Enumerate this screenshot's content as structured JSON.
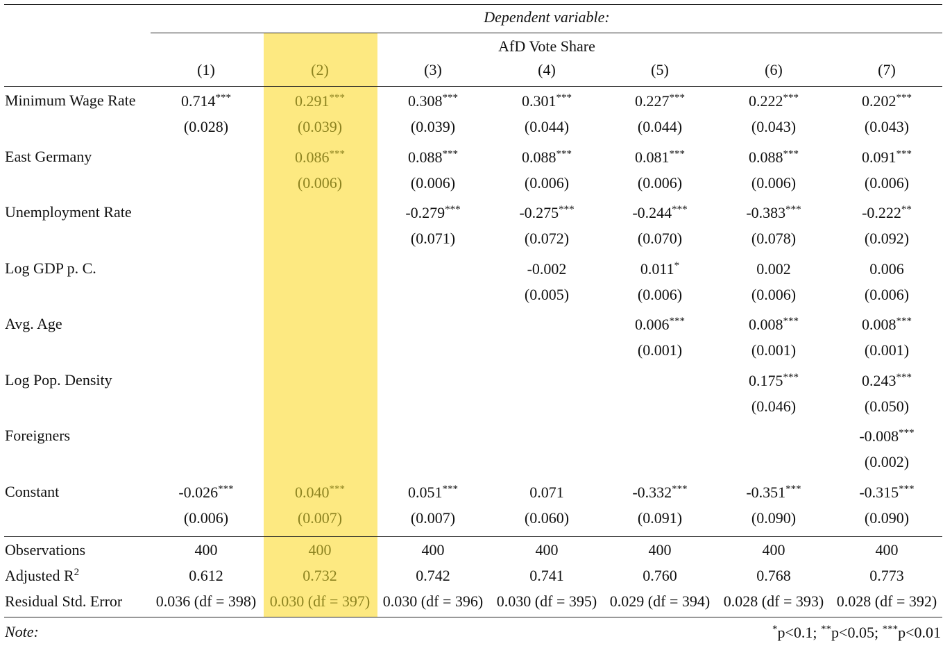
{
  "header": {
    "dependent_variable_label": "Dependent variable:",
    "dependent_variable_name": "AfD Vote Share",
    "columns": [
      "(1)",
      "(2)",
      "(3)",
      "(4)",
      "(5)",
      "(6)",
      "(7)"
    ],
    "highlighted_column": 1
  },
  "rows": [
    {
      "label": "Minimum Wage Rate",
      "coef": [
        [
          "0.714",
          "***"
        ],
        [
          "0.291",
          "***"
        ],
        [
          "0.308",
          "***"
        ],
        [
          "0.301",
          "***"
        ],
        [
          "0.227",
          "***"
        ],
        [
          "0.222",
          "***"
        ],
        [
          "0.202",
          "***"
        ]
      ],
      "se": [
        "(0.028)",
        "(0.039)",
        "(0.039)",
        "(0.044)",
        "(0.044)",
        "(0.043)",
        "(0.043)"
      ]
    },
    {
      "label": "East Germany",
      "coef": [
        null,
        [
          "0.086",
          "***"
        ],
        [
          "0.088",
          "***"
        ],
        [
          "0.088",
          "***"
        ],
        [
          "0.081",
          "***"
        ],
        [
          "0.088",
          "***"
        ],
        [
          "0.091",
          "***"
        ]
      ],
      "se": [
        null,
        "(0.006)",
        "(0.006)",
        "(0.006)",
        "(0.006)",
        "(0.006)",
        "(0.006)"
      ]
    },
    {
      "label": "Unemployment Rate",
      "coef": [
        null,
        null,
        [
          "-0.279",
          "***"
        ],
        [
          "-0.275",
          "***"
        ],
        [
          "-0.244",
          "***"
        ],
        [
          "-0.383",
          "***"
        ],
        [
          "-0.222",
          "**"
        ]
      ],
      "se": [
        null,
        null,
        "(0.071)",
        "(0.072)",
        "(0.070)",
        "(0.078)",
        "(0.092)"
      ]
    },
    {
      "label": "Log GDP p. C.",
      "coef": [
        null,
        null,
        null,
        [
          "-0.002",
          ""
        ],
        [
          "0.011",
          "*"
        ],
        [
          "0.002",
          ""
        ],
        [
          "0.006",
          ""
        ]
      ],
      "se": [
        null,
        null,
        null,
        "(0.005)",
        "(0.006)",
        "(0.006)",
        "(0.006)"
      ]
    },
    {
      "label": "Avg. Age",
      "coef": [
        null,
        null,
        null,
        null,
        [
          "0.006",
          "***"
        ],
        [
          "0.008",
          "***"
        ],
        [
          "0.008",
          "***"
        ]
      ],
      "se": [
        null,
        null,
        null,
        null,
        "(0.001)",
        "(0.001)",
        "(0.001)"
      ]
    },
    {
      "label": "Log Pop. Density",
      "coef": [
        null,
        null,
        null,
        null,
        null,
        [
          "0.175",
          "***"
        ],
        [
          "0.243",
          "***"
        ]
      ],
      "se": [
        null,
        null,
        null,
        null,
        null,
        "(0.046)",
        "(0.050)"
      ]
    },
    {
      "label": "Foreigners",
      "coef": [
        null,
        null,
        null,
        null,
        null,
        null,
        [
          "-0.008",
          "***"
        ]
      ],
      "se": [
        null,
        null,
        null,
        null,
        null,
        null,
        "(0.002)"
      ]
    },
    {
      "label": "Constant",
      "coef": [
        [
          "-0.026",
          "***"
        ],
        [
          "0.040",
          "***"
        ],
        [
          "0.051",
          "***"
        ],
        [
          "0.071",
          ""
        ],
        [
          "-0.332",
          "***"
        ],
        [
          "-0.351",
          "***"
        ],
        [
          "-0.315",
          "***"
        ]
      ],
      "se": [
        "(0.006)",
        "(0.007)",
        "(0.007)",
        "(0.060)",
        "(0.091)",
        "(0.090)",
        "(0.090)"
      ]
    }
  ],
  "stats": [
    {
      "label": "Observations",
      "values": [
        "400",
        "400",
        "400",
        "400",
        "400",
        "400",
        "400"
      ]
    },
    {
      "label": "Adjusted R",
      "label_sup": "2",
      "values": [
        "0.612",
        "0.732",
        "0.742",
        "0.741",
        "0.760",
        "0.768",
        "0.773"
      ]
    },
    {
      "label": "Residual Std. Error",
      "values": [
        "0.036 (df = 398)",
        "0.030 (df = 397)",
        "0.030 (df = 396)",
        "0.030 (df = 395)",
        "0.029 (df = 394)",
        "0.028 (df = 393)",
        "0.028 (df = 392)"
      ]
    }
  ],
  "footer": {
    "note_label": "Note:",
    "significance": [
      {
        "stars": "*",
        "text": "p<0.1;"
      },
      {
        "stars": "**",
        "text": "p<0.05;"
      },
      {
        "stars": "***",
        "text": "p<0.01"
      }
    ]
  }
}
